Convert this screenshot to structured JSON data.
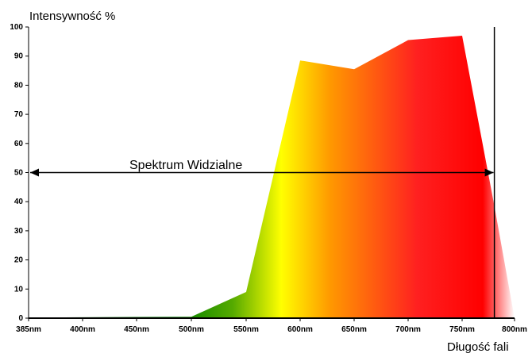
{
  "chart_data": {
    "type": "area",
    "title": "",
    "ylabel": "Intensywność %",
    "xlabel": "Długość fali",
    "x_tick_labels": [
      "385nm",
      "400nm",
      "450nm",
      "500nm",
      "550nm",
      "600nm",
      "650nm",
      "700nm",
      "750nm",
      "800nm"
    ],
    "y_ticks": [
      0,
      10,
      20,
      30,
      40,
      50,
      60,
      70,
      80,
      90,
      100
    ],
    "ylim": [
      0,
      100
    ],
    "grid": false,
    "series": [
      {
        "x": [
          385,
          400,
          450,
          500,
          550,
          600,
          650,
          700,
          750,
          780,
          800
        ],
        "values": [
          0.2,
          0.3,
          0.4,
          0.5,
          9,
          88.5,
          85.5,
          95.5,
          97,
          40,
          0
        ]
      }
    ],
    "annotation": {
      "text": "Spektrum Widzialne",
      "y": 50,
      "x_range": [
        385,
        780
      ],
      "marker_x": 780
    },
    "colors": {
      "green": "#008000",
      "yellow": "#ffff00",
      "orange": "#ff9900",
      "red": "#ff0000",
      "axis": "#000000"
    }
  }
}
